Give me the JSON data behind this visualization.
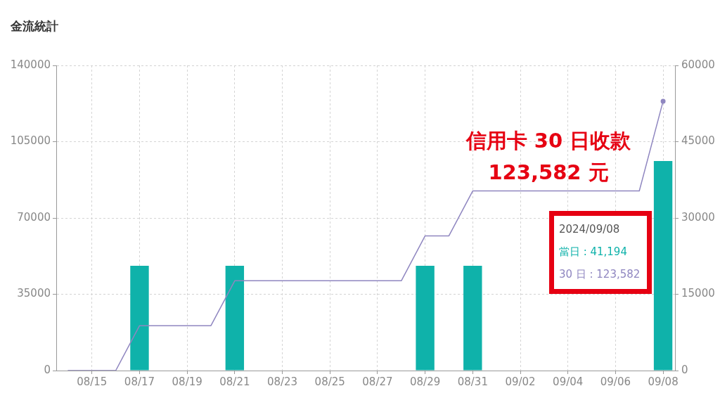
{
  "chart_data": {
    "type": "bar",
    "title": "金流統計",
    "categories": [
      null,
      "08/15",
      null,
      "08/17",
      null,
      "08/19",
      null,
      "08/21",
      null,
      "08/23",
      null,
      "08/25",
      null,
      "08/27",
      null,
      "08/29",
      null,
      "08/31",
      null,
      "09/02",
      null,
      "09/04",
      null,
      "09/06",
      null,
      "09/08"
    ],
    "series": [
      {
        "name": "當日 :",
        "color": "#0fb2aa",
        "axis": "y2",
        "values": [
          null,
          null,
          null,
          20600,
          null,
          null,
          null,
          20600,
          null,
          null,
          null,
          null,
          null,
          null,
          null,
          20600,
          null,
          20600,
          null,
          null,
          null,
          null,
          null,
          null,
          null,
          41194
        ],
        "value_labels": [
          null,
          null,
          null,
          null,
          null,
          null,
          null,
          null,
          null,
          null,
          null,
          null,
          null,
          null,
          null,
          null,
          null,
          null,
          null,
          null,
          null,
          null,
          null,
          null,
          null,
          "41,194"
        ]
      },
      {
        "type": "line",
        "name": "30 日 :",
        "color": "#8f86c0",
        "values": [
          0,
          0,
          0,
          20600,
          20600,
          20600,
          20600,
          41200,
          41200,
          41200,
          41200,
          41200,
          41200,
          41200,
          41200,
          61800,
          61800,
          82400,
          82400,
          82400,
          82400,
          82400,
          82400,
          82400,
          82400,
          123582
        ],
        "value_labels": [
          null,
          null,
          null,
          null,
          null,
          null,
          null,
          null,
          null,
          null,
          null,
          null,
          null,
          null,
          null,
          null,
          null,
          null,
          null,
          null,
          null,
          null,
          null,
          null,
          null,
          "123,582"
        ]
      }
    ],
    "ylim": [
      0,
      140000
    ],
    "yticks": [
      0,
      35000,
      70000,
      105000,
      140000
    ],
    "y2lim": [
      0,
      60000
    ],
    "y2ticks": [
      0,
      15000,
      30000,
      45000,
      60000
    ],
    "grid": true,
    "annotations": [
      "2024/09/08",
      "信用卡 30 日收款",
      "123,582 元"
    ]
  }
}
